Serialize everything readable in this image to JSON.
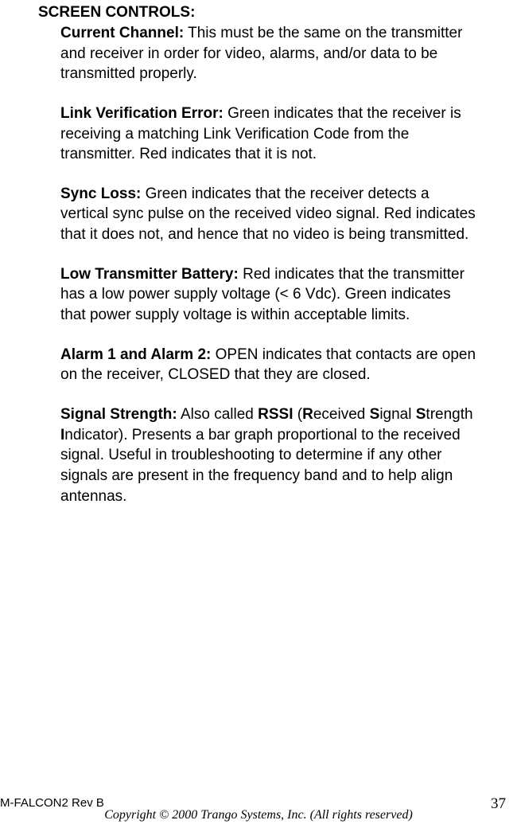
{
  "heading": "SCREEN CONTROLS:",
  "entries": {
    "currentChannel": {
      "label": "Current Channel:",
      "text": " This must be the same on the transmitter and receiver in order for video, alarms, and/or data to be transmitted properly."
    },
    "linkVerification": {
      "label": "Link Verification Error:",
      "text": " Green indicates that the receiver is receiving a matching Link Verification Code from the transmitter.  Red indicates that it is not."
    },
    "syncLoss": {
      "label": "Sync Loss:",
      "text": " Green indicates that the receiver detects a vertical sync pulse on the received video signal.  Red indicates that it does not, and hence that no video is being transmitted."
    },
    "lowBattery": {
      "label": "Low Transmitter Battery:",
      "text": " Red indicates that the transmitter has a low power supply voltage (< 6 Vdc). Green indicates that power supply voltage is within acceptable limits."
    },
    "alarms": {
      "label": "Alarm 1 and Alarm 2:",
      "text": " OPEN indicates that contacts are open on the receiver, CLOSED that they are closed."
    },
    "signalStrength": {
      "label": "Signal Strength:",
      "textA": " Also called ",
      "rssi": "RSSI",
      "textB": " (",
      "r": "R",
      "textC": "eceived ",
      "s1": "S",
      "textD": "ignal ",
      "s2": "S",
      "textE": "trength ",
      "i": "I",
      "textF": "ndicator).  Presents a bar graph proportional to the received signal. Useful in troubleshooting to determine if any other signals are present in the frequency band and to help align antennas."
    }
  },
  "footer": {
    "docId": "M-FALCON2 Rev B",
    "copyright": "Copyright © 2000 Trango Systems, Inc.  (All rights reserved)",
    "page": "37"
  }
}
